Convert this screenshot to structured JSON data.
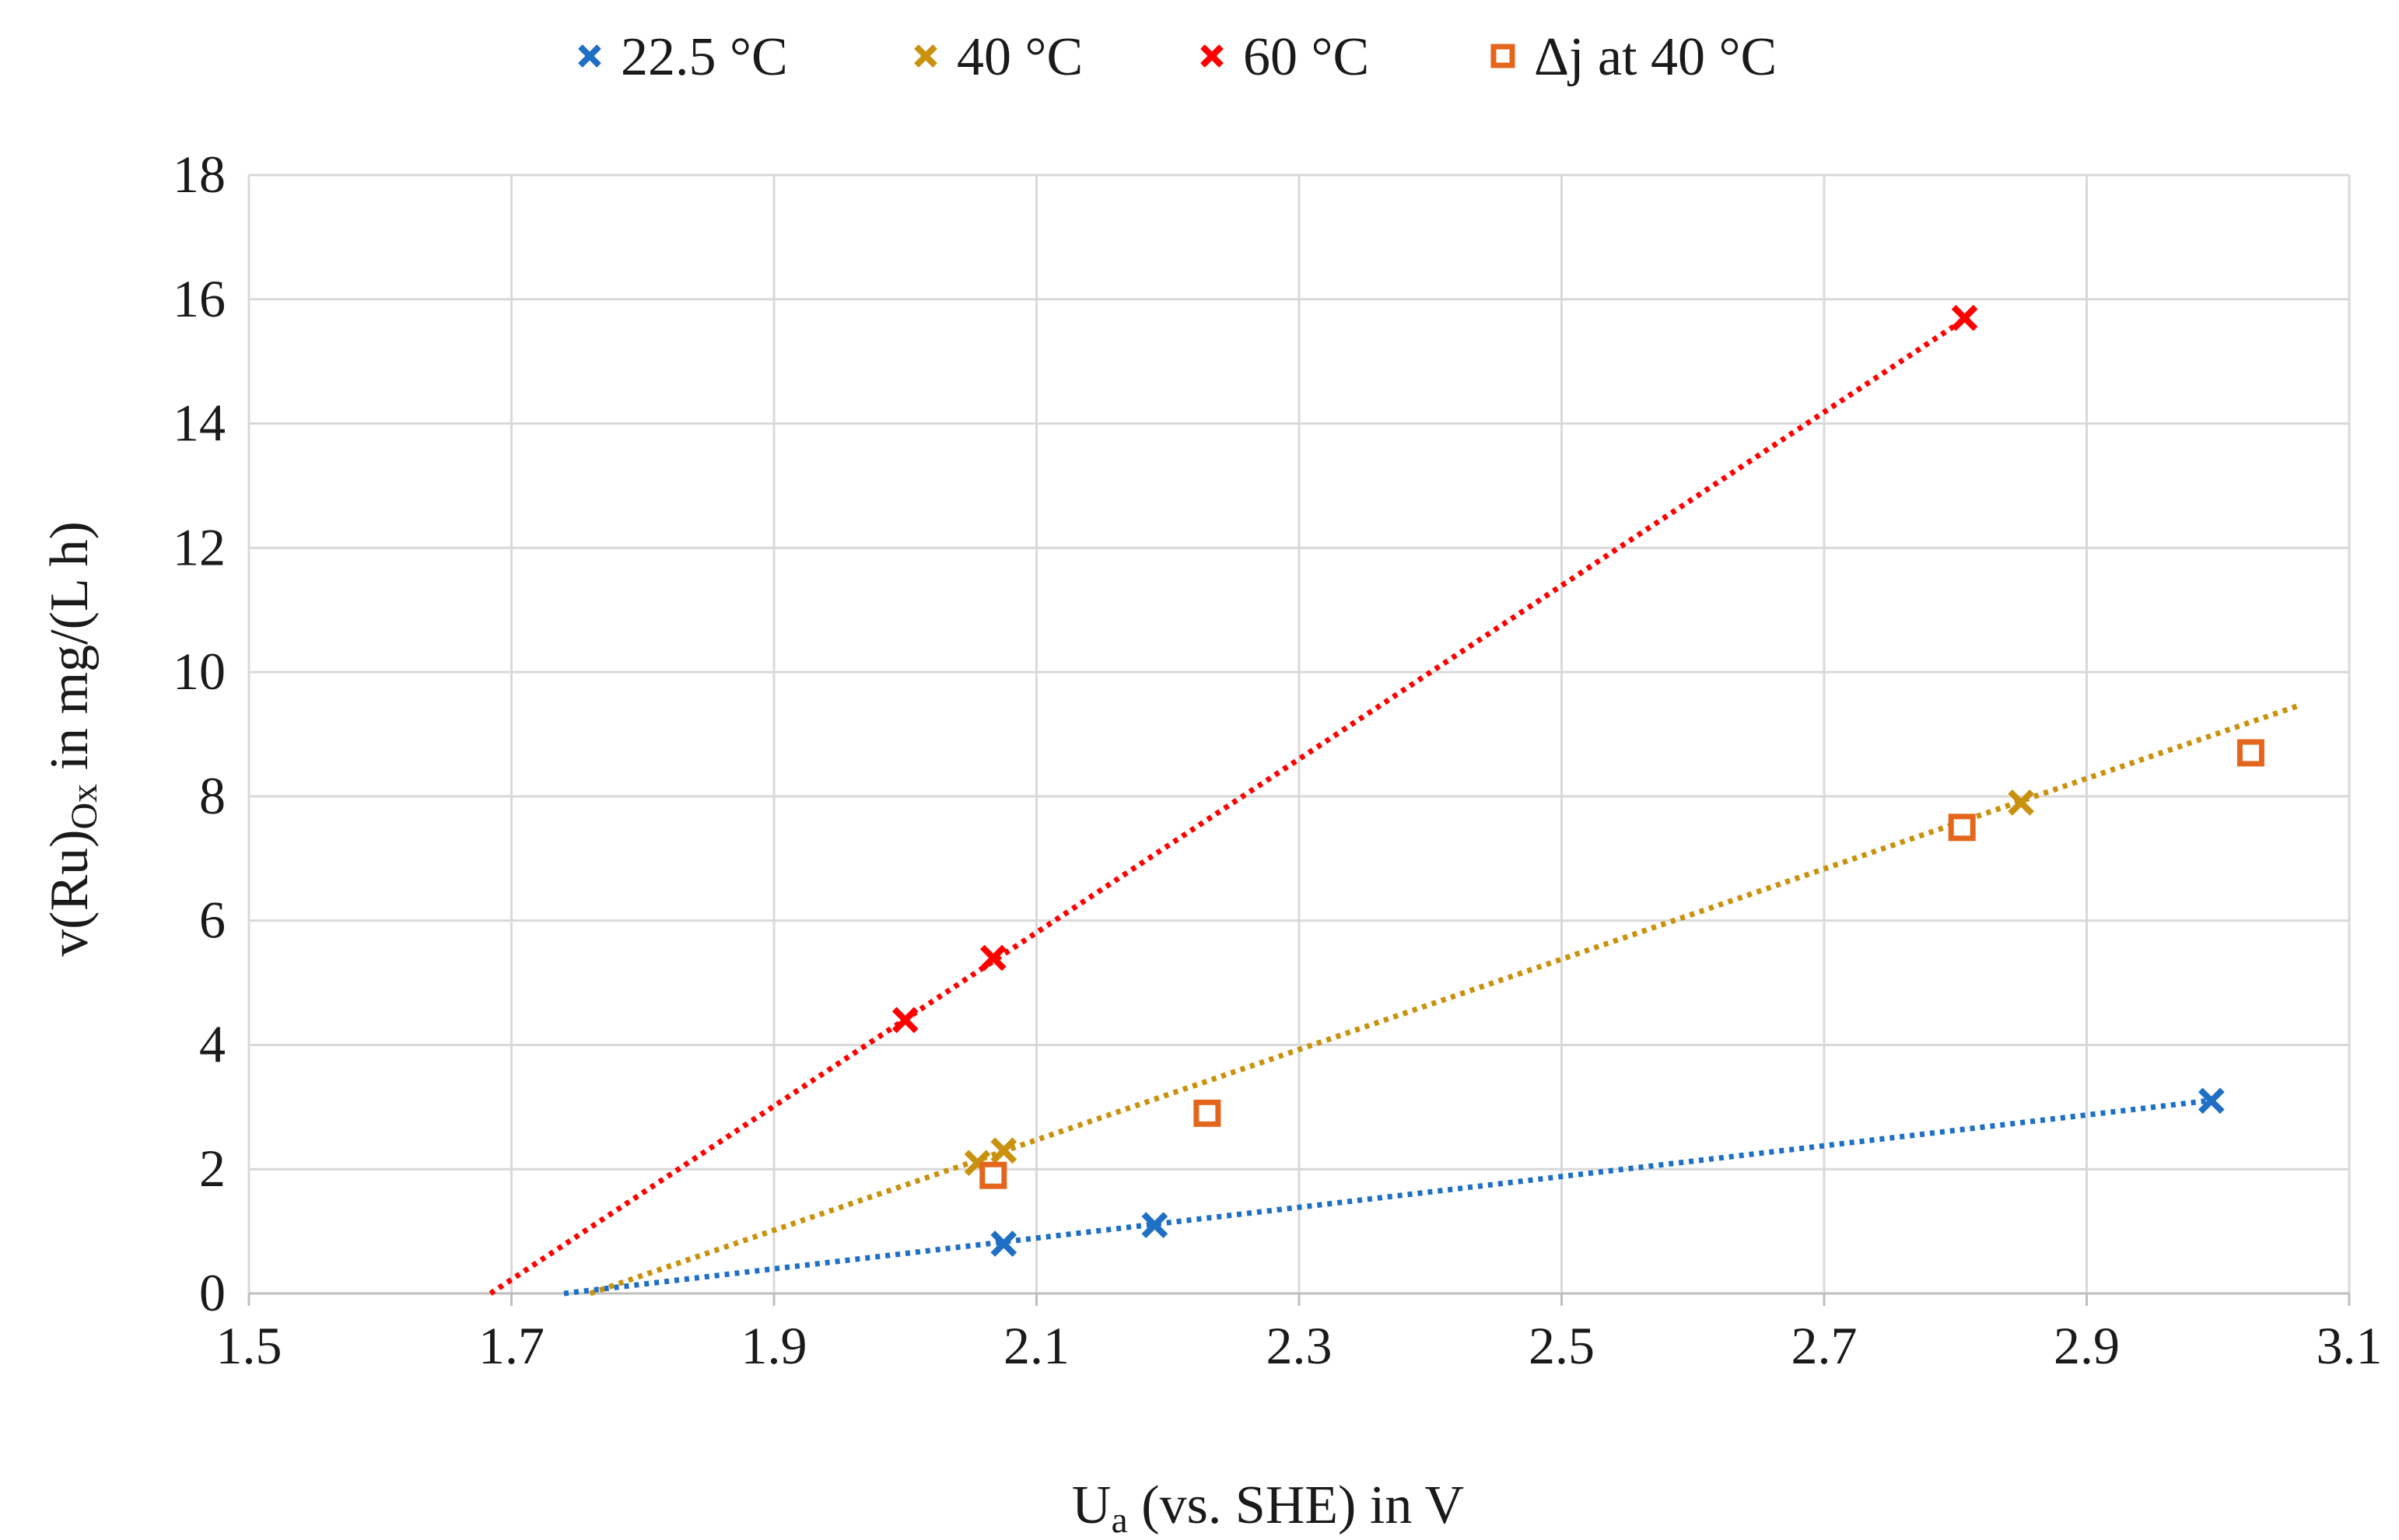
{
  "chart_data": {
    "type": "scatter",
    "title": "",
    "xlabel": {
      "main": "U",
      "sub": "a",
      "rest": " (vs. SHE) in V"
    },
    "ylabel": {
      "main": "v(Ru)",
      "sub": "Ox",
      "rest": " in mg/(L h)"
    },
    "xlim": [
      1.5,
      3.1
    ],
    "ylim": [
      0,
      18
    ],
    "x_ticks": [
      "1.5",
      "1.7",
      "1.9",
      "2.1",
      "2.3",
      "2.5",
      "2.7",
      "2.9",
      "3.1"
    ],
    "y_ticks": [
      "0",
      "2",
      "4",
      "6",
      "8",
      "10",
      "12",
      "14",
      "16",
      "18"
    ],
    "grid": true,
    "legend_position": "top",
    "series": [
      {
        "name": "22.5 °C",
        "marker": "x",
        "color": "#1f6fc4",
        "points": [
          [
            2.075,
            0.8
          ],
          [
            2.19,
            1.1
          ],
          [
            2.995,
            3.1
          ]
        ],
        "trendline": {
          "style": "dotted",
          "x": [
            1.74,
            3.0
          ],
          "y": [
            0.0,
            3.12
          ]
        }
      },
      {
        "name": "40 °C",
        "marker": "x",
        "color": "#c9920e",
        "points": [
          [
            2.055,
            2.1
          ],
          [
            2.075,
            2.3
          ],
          [
            2.85,
            7.9
          ]
        ],
        "trendline": {
          "style": "dotted",
          "x": [
            1.76,
            3.06
          ],
          "y": [
            0.0,
            9.45
          ]
        }
      },
      {
        "name": "60 °C",
        "marker": "x",
        "color": "#ff0000",
        "points": [
          [
            2.0,
            4.4
          ],
          [
            2.067,
            5.4
          ],
          [
            2.807,
            15.7
          ]
        ],
        "trendline": {
          "style": "dotted",
          "x": [
            1.684,
            2.81
          ],
          "y": [
            0.0,
            15.72
          ]
        }
      },
      {
        "name": "Δj at 40 °C",
        "marker": "square",
        "color": "#e4661c",
        "points": [
          [
            2.067,
            1.9
          ],
          [
            2.23,
            2.9
          ],
          [
            2.805,
            7.5
          ],
          [
            3.025,
            8.7
          ]
        ],
        "trendline": null
      }
    ]
  }
}
